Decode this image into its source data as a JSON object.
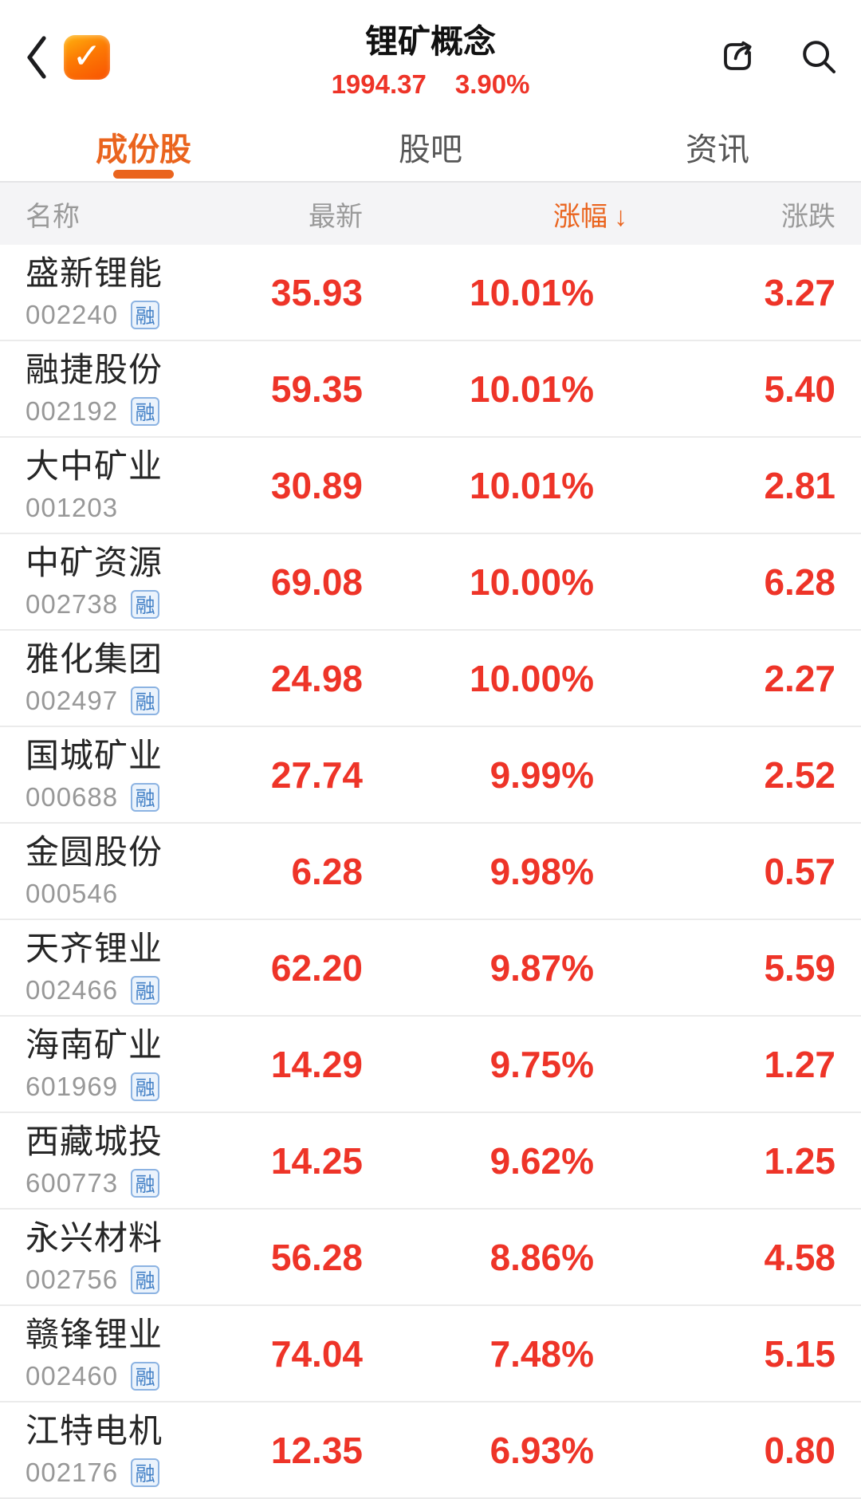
{
  "header": {
    "title": "锂矿概念",
    "index_value": "1994.37",
    "index_change": "3.90%"
  },
  "tabs": [
    {
      "label": "成份股",
      "active": true
    },
    {
      "label": "股吧",
      "active": false
    },
    {
      "label": "资讯",
      "active": false
    }
  ],
  "table": {
    "columns": {
      "name": "名称",
      "price": "最新",
      "pct": "涨幅",
      "chg": "涨跌"
    },
    "sort_arrow": "↓",
    "margin_badge_label": "融",
    "rows": [
      {
        "name": "盛新锂能",
        "code": "002240",
        "margin": true,
        "price": "35.93",
        "pct": "10.01%",
        "chg": "3.27"
      },
      {
        "name": "融捷股份",
        "code": "002192",
        "margin": true,
        "price": "59.35",
        "pct": "10.01%",
        "chg": "5.40"
      },
      {
        "name": "大中矿业",
        "code": "001203",
        "margin": false,
        "price": "30.89",
        "pct": "10.01%",
        "chg": "2.81"
      },
      {
        "name": "中矿资源",
        "code": "002738",
        "margin": true,
        "price": "69.08",
        "pct": "10.00%",
        "chg": "6.28"
      },
      {
        "name": "雅化集团",
        "code": "002497",
        "margin": true,
        "price": "24.98",
        "pct": "10.00%",
        "chg": "2.27"
      },
      {
        "name": "国城矿业",
        "code": "000688",
        "margin": true,
        "price": "27.74",
        "pct": "9.99%",
        "chg": "2.52"
      },
      {
        "name": "金圆股份",
        "code": "000546",
        "margin": false,
        "price": "6.28",
        "pct": "9.98%",
        "chg": "0.57"
      },
      {
        "name": "天齐锂业",
        "code": "002466",
        "margin": true,
        "price": "62.20",
        "pct": "9.87%",
        "chg": "5.59"
      },
      {
        "name": "海南矿业",
        "code": "601969",
        "margin": true,
        "price": "14.29",
        "pct": "9.75%",
        "chg": "1.27"
      },
      {
        "name": "西藏城投",
        "code": "600773",
        "margin": true,
        "price": "14.25",
        "pct": "9.62%",
        "chg": "1.25"
      },
      {
        "name": "永兴材料",
        "code": "002756",
        "margin": true,
        "price": "56.28",
        "pct": "8.86%",
        "chg": "4.58"
      },
      {
        "name": "赣锋锂业",
        "code": "002460",
        "margin": true,
        "price": "74.04",
        "pct": "7.48%",
        "chg": "5.15"
      },
      {
        "name": "江特电机",
        "code": "002176",
        "margin": true,
        "price": "12.35",
        "pct": "6.93%",
        "chg": "0.80"
      }
    ]
  },
  "colors": {
    "up_red": "#ee3428",
    "accent_orange": "#ea641e",
    "badge_text": "#4380c6",
    "badge_border": "#8cb3e2",
    "badge_bg": "#ebf3fc",
    "header_bg": "#f4f4f6"
  }
}
